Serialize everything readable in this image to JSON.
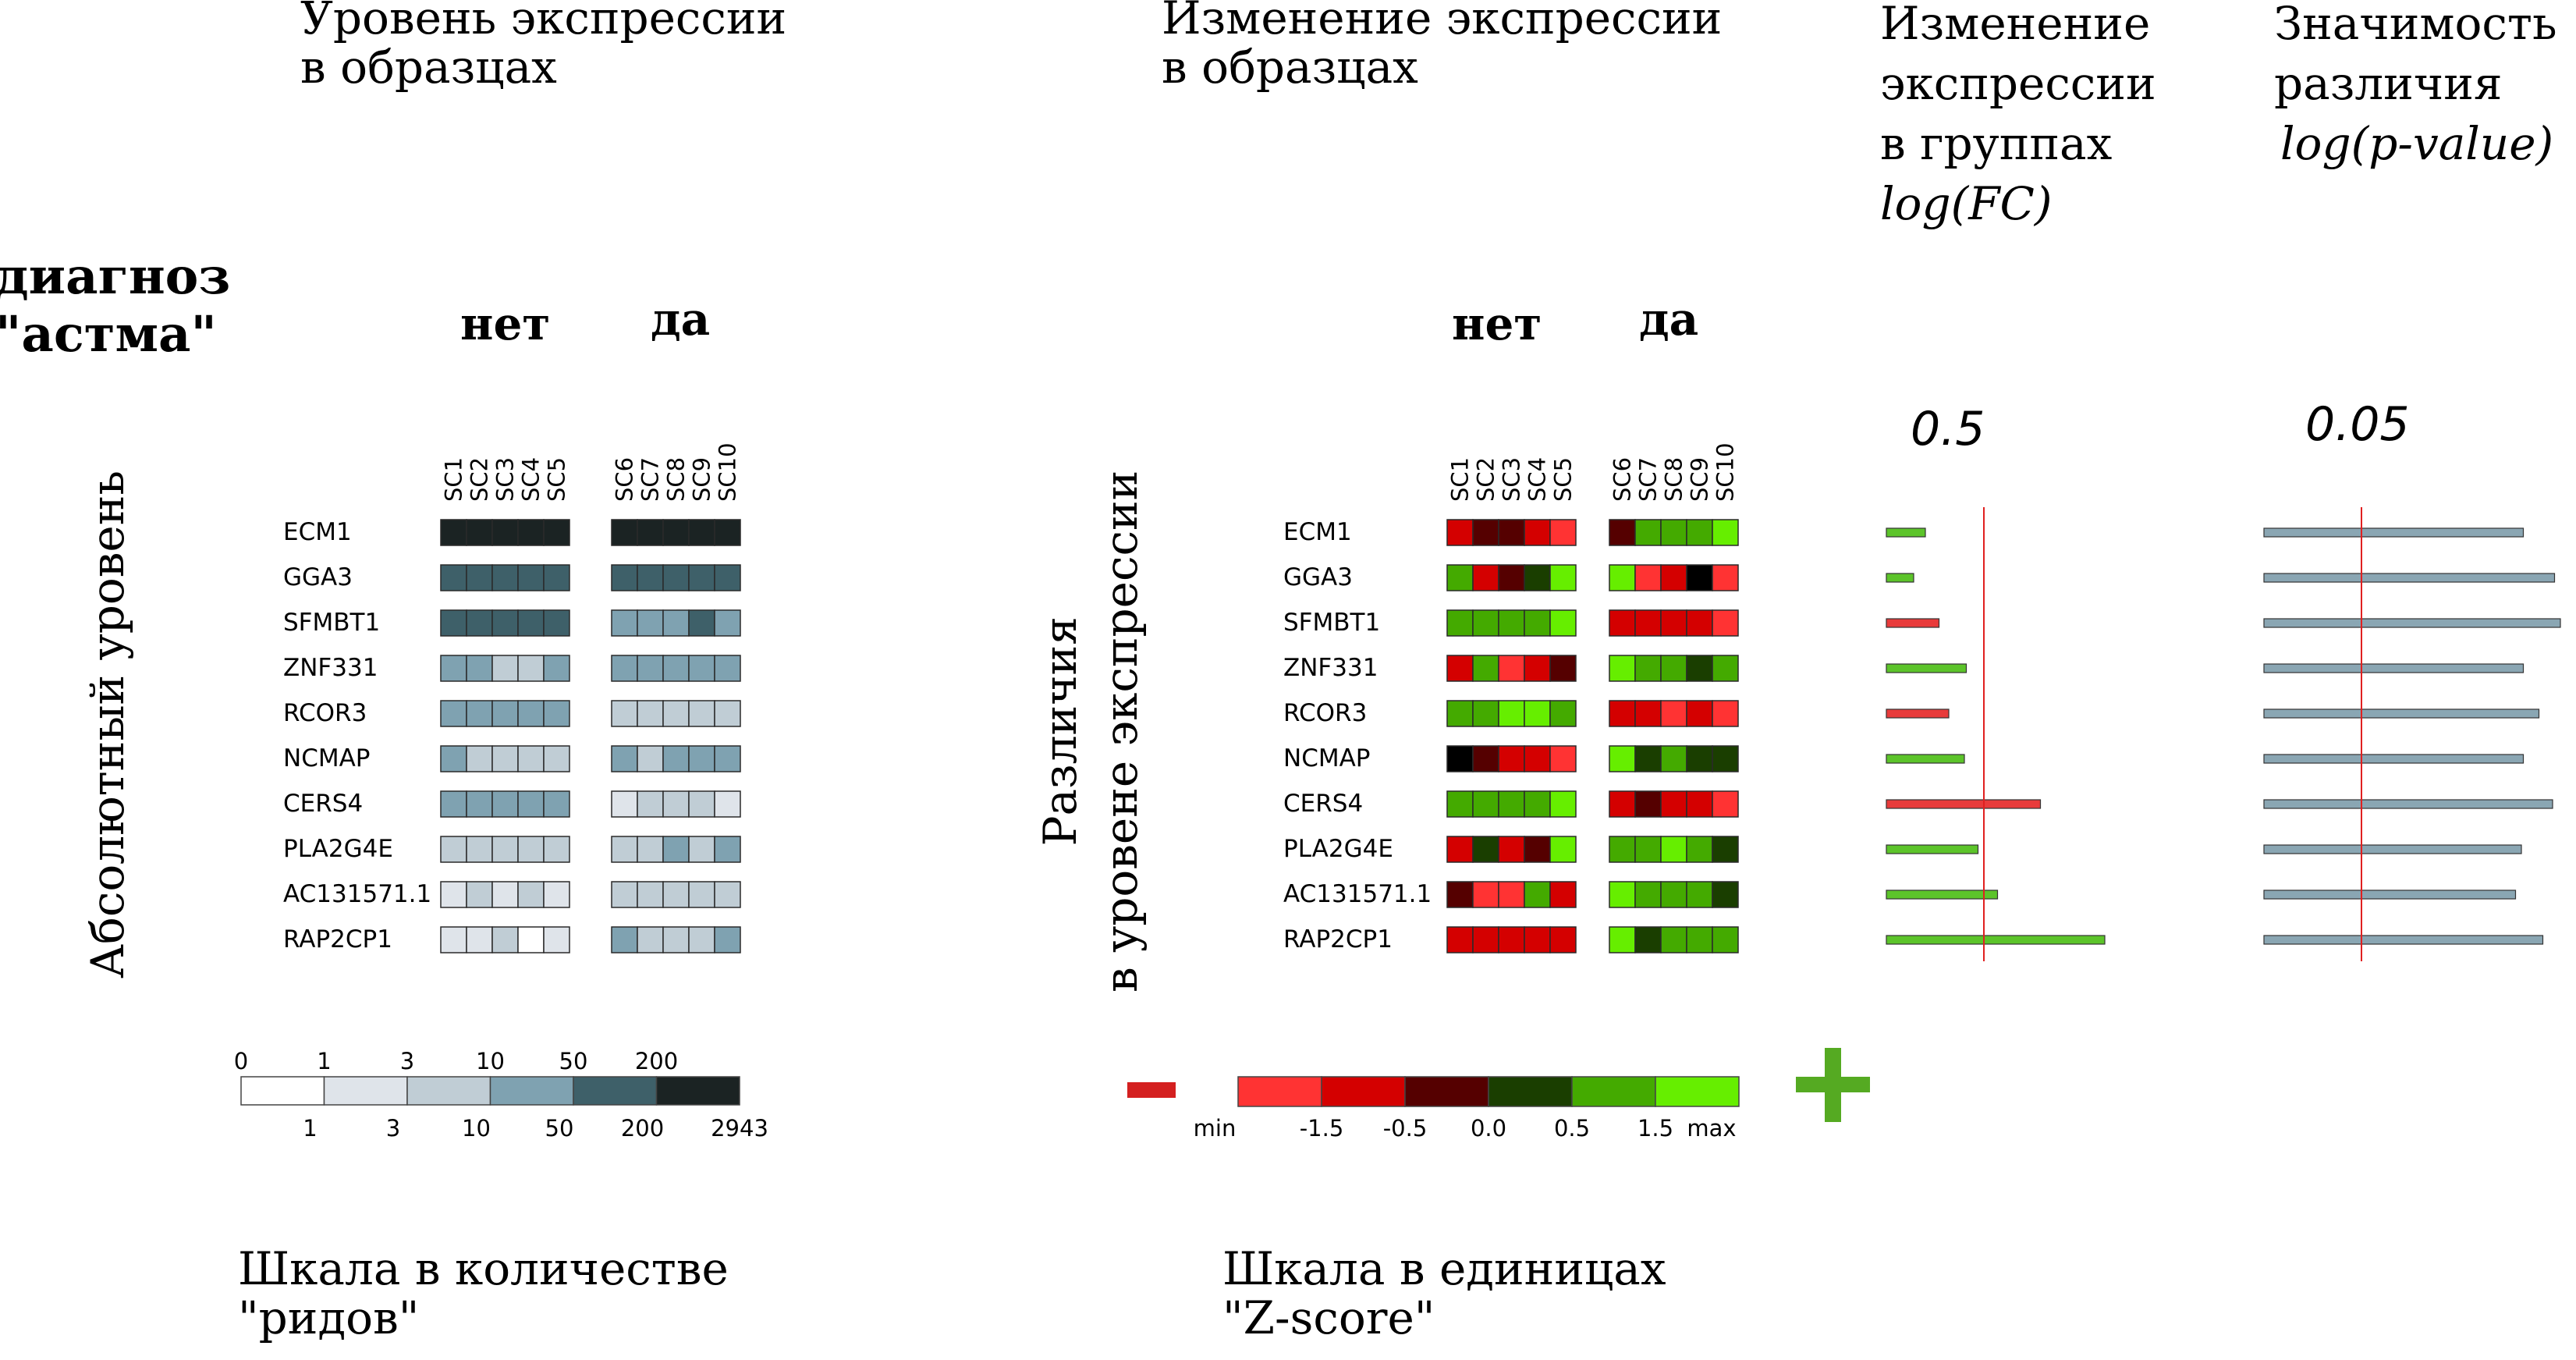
{
  "headers": {
    "level": [
      "Уровень экспрессии",
      "в образцах"
    ],
    "change": [
      "Изменение экспрессии",
      "в образцах"
    ],
    "fc": [
      "Изменение",
      "экспрессии",
      "в группах",
      "log(FC)"
    ],
    "pval": [
      "Значимость",
      "различия",
      "log(p-value)"
    ]
  },
  "diagnosis": [
    "диагноз",
    "\"астма\""
  ],
  "left_axis_label": "Абсолютный уровень",
  "middle_axis_label": [
    "Различия",
    "в уровене экспрессии"
  ],
  "scale_captions": {
    "left": [
      "Шкала в количестве",
      "\"ридов\""
    ],
    "middle": [
      "Шкала в единицах",
      "\"Z-score\""
    ]
  },
  "colors": {
    "level": [
      "#ffffff",
      "#dfe4ea",
      "#c0cdd5",
      "#7fa2b1",
      "#3e6069",
      "#1b2323"
    ],
    "z": [
      "#ff3333",
      "#d40000",
      "#550000",
      "#1a3e00",
      "#44aa00",
      "#66ee00"
    ],
    "minus": "#d42020",
    "plus": "#55aa22",
    "fc_pos": "#5cc42a",
    "fc_neg": "#e83b3b",
    "pval_bar": "#8aa6b3",
    "ref_line": "#e02020"
  },
  "chart_data": [
    {
      "type": "heatmap",
      "title": "Уровень экспрессии в образцах",
      "ylabel": "Абсолютный уровень",
      "groups": [
        {
          "name": "нет",
          "samples": [
            "SC1",
            "SC2",
            "SC3",
            "SC4",
            "SC5"
          ]
        },
        {
          "name": "да",
          "samples": [
            "SC6",
            "SC7",
            "SC8",
            "SC9",
            "SC10"
          ]
        }
      ],
      "genes": [
        "ECM1",
        "GGA3",
        "SFMBT1",
        "ZNF331",
        "RCOR3",
        "NCMAP",
        "CERS4",
        "PLA2G4E",
        "AC131571.1",
        "RAP2CP1"
      ],
      "level_bins": [
        [
          5,
          5,
          5,
          5,
          5,
          5,
          5,
          5,
          5,
          5
        ],
        [
          4,
          4,
          4,
          4,
          4,
          4,
          4,
          4,
          4,
          4
        ],
        [
          4,
          4,
          4,
          4,
          4,
          3,
          3,
          3,
          4,
          3
        ],
        [
          3,
          3,
          2,
          2,
          3,
          3,
          3,
          3,
          3,
          3
        ],
        [
          3,
          3,
          3,
          3,
          3,
          2,
          2,
          2,
          2,
          2
        ],
        [
          3,
          2,
          2,
          2,
          2,
          3,
          2,
          3,
          3,
          3
        ],
        [
          3,
          3,
          3,
          3,
          3,
          1,
          2,
          2,
          2,
          1
        ],
        [
          2,
          2,
          2,
          2,
          2,
          2,
          2,
          3,
          2,
          3
        ],
        [
          1,
          2,
          1,
          2,
          1,
          2,
          2,
          2,
          2,
          2
        ],
        [
          1,
          1,
          2,
          0,
          1,
          3,
          2,
          2,
          2,
          3
        ]
      ],
      "legend": {
        "top_ticks": [
          "0",
          "1",
          "3",
          "10",
          "50",
          "200"
        ],
        "bottom_ticks": [
          "1",
          "3",
          "10",
          "50",
          "200",
          "2943"
        ]
      },
      "caption": "Шкала в количестве \"ридов\""
    },
    {
      "type": "heatmap",
      "title": "Изменение экспрессии в образцах",
      "ylabel": "Различия в уровене экспрессии",
      "groups": [
        {
          "name": "нет",
          "samples": [
            "SC1",
            "SC2",
            "SC3",
            "SC4",
            "SC5"
          ]
        },
        {
          "name": "да",
          "samples": [
            "SC6",
            "SC7",
            "SC8",
            "SC9",
            "SC10"
          ]
        }
      ],
      "genes": [
        "ECM1",
        "GGA3",
        "SFMBT1",
        "ZNF331",
        "RCOR3",
        "NCMAP",
        "CERS4",
        "PLA2G4E",
        "AC131571.1",
        "RAP2CP1"
      ],
      "z_bins": [
        [
          1,
          2,
          2,
          1,
          0,
          2,
          4,
          4,
          4,
          5
        ],
        [
          4,
          1,
          2,
          3,
          5,
          5,
          0,
          1,
          6,
          0
        ],
        [
          4,
          4,
          4,
          4,
          5,
          1,
          1,
          1,
          1,
          0
        ],
        [
          1,
          4,
          0,
          1,
          2,
          5,
          4,
          4,
          3,
          4
        ],
        [
          4,
          4,
          5,
          5,
          4,
          1,
          1,
          0,
          1,
          0
        ],
        [
          6,
          2,
          1,
          1,
          0,
          5,
          3,
          4,
          3,
          3
        ],
        [
          4,
          4,
          4,
          4,
          5,
          1,
          2,
          1,
          1,
          0
        ],
        [
          1,
          3,
          1,
          2,
          5,
          4,
          4,
          5,
          4,
          3
        ],
        [
          2,
          0,
          0,
          4,
          1,
          5,
          4,
          4,
          4,
          3
        ],
        [
          1,
          1,
          1,
          1,
          1,
          5,
          3,
          4,
          4,
          4
        ]
      ],
      "legend": {
        "ticks": [
          "min",
          "-1.5",
          "-0.5",
          "0.0",
          "0.5",
          "1.5",
          "max"
        ],
        "minus": "−",
        "plus": "+"
      },
      "caption": "Шкала в единицах \"Z-score\""
    },
    {
      "type": "bar",
      "title": "Изменение экспрессии в группах log(FC)",
      "categories": [
        "ECM1",
        "GGA3",
        "SFMBT1",
        "ZNF331",
        "RCOR3",
        "NCMAP",
        "CERS4",
        "PLA2G4E",
        "AC131571.1",
        "RAP2CP1"
      ],
      "values": [
        0.2,
        0.14,
        0.27,
        0.41,
        0.32,
        0.4,
        0.79,
        0.47,
        0.57,
        1.12
      ],
      "direction": [
        "up",
        "up",
        "down",
        "up",
        "down",
        "up",
        "down",
        "up",
        "up",
        "up"
      ],
      "reference_line": 0.5,
      "reference_label": "0.5"
    },
    {
      "type": "bar",
      "title": "Значимость различия log(p-value)",
      "categories": [
        "ECM1",
        "GGA3",
        "SFMBT1",
        "ZNF331",
        "RCOR3",
        "NCMAP",
        "CERS4",
        "PLA2G4E",
        "AC131571.1",
        "RAP2CP1"
      ],
      "values": [
        0.133,
        0.149,
        0.152,
        0.133,
        0.141,
        0.133,
        0.148,
        0.132,
        0.129,
        0.143
      ],
      "reference_line": 0.05,
      "reference_label": "0.05"
    }
  ]
}
